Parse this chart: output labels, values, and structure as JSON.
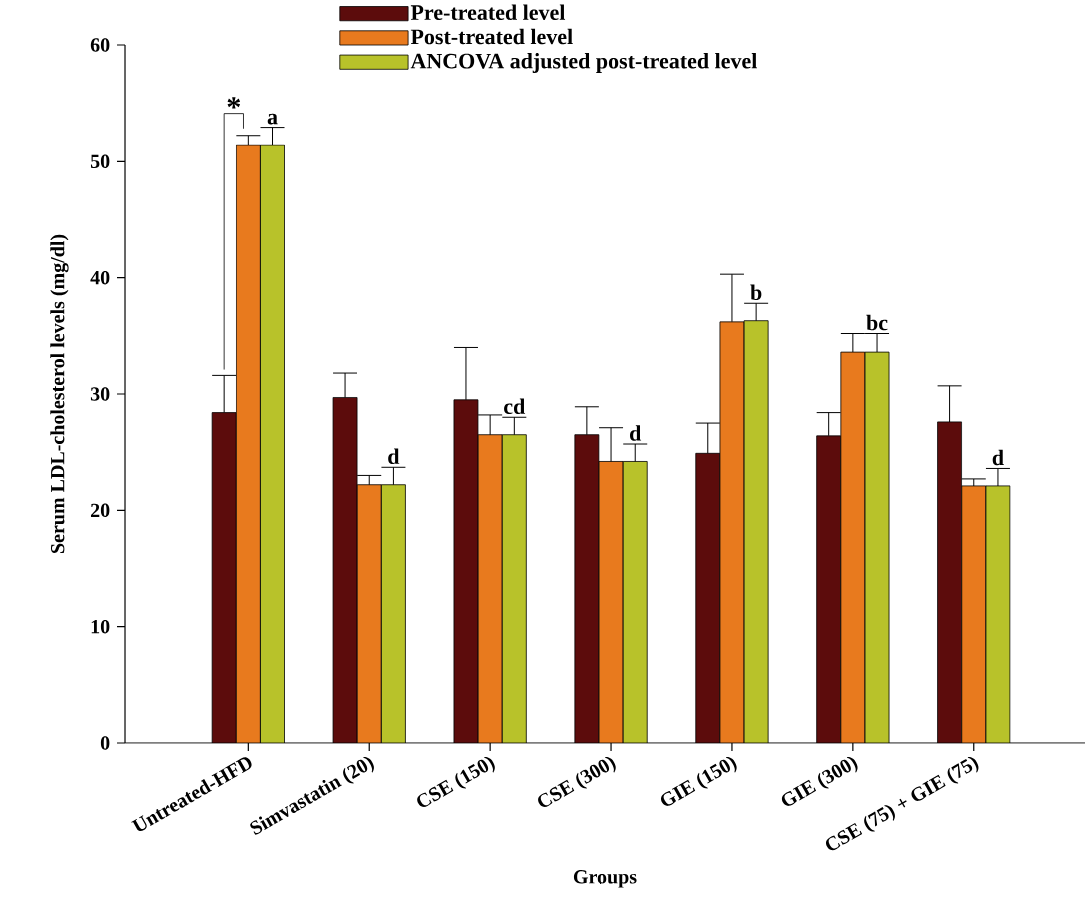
{
  "chart_data": {
    "type": "bar",
    "xlabel": "Groups",
    "ylabel": "Serum LDL-cholesterol levels (mg/dl)",
    "categories": [
      "Untreated-HFD",
      "Simvastatin (20)",
      "CSE (150)",
      "CSE (300)",
      "GIE (150)",
      "GIE (300)",
      "CSE (75) + GIE (75)"
    ],
    "series": [
      {
        "name": "Pre-treated level",
        "color": "#5c0c0c",
        "values": [
          28.4,
          29.7,
          29.5,
          26.5,
          24.9,
          26.4,
          27.6
        ],
        "errors": [
          3.2,
          2.1,
          4.5,
          2.4,
          2.6,
          2.0,
          3.1
        ]
      },
      {
        "name": "Post-treated level",
        "color": "#e87a1e",
        "values": [
          51.4,
          22.2,
          26.5,
          24.2,
          36.2,
          33.6,
          22.1
        ],
        "errors": [
          0.8,
          0.8,
          1.7,
          2.9,
          4.1,
          1.6,
          0.6
        ]
      },
      {
        "name": "ANCOVA adjusted post-treated level",
        "color": "#b8c22a",
        "values": [
          51.4,
          22.2,
          26.5,
          24.2,
          36.3,
          33.6,
          22.1
        ],
        "errors": [
          1.5,
          1.5,
          1.5,
          1.5,
          1.5,
          1.6,
          1.5
        ]
      }
    ],
    "ylim": [
      0,
      60
    ],
    "yticks": [
      0,
      10,
      20,
      30,
      40,
      50,
      60
    ],
    "legend": "top",
    "annotations": [
      "*",
      "a",
      "d",
      "cd",
      "d",
      "b",
      "bc",
      "d"
    ]
  }
}
